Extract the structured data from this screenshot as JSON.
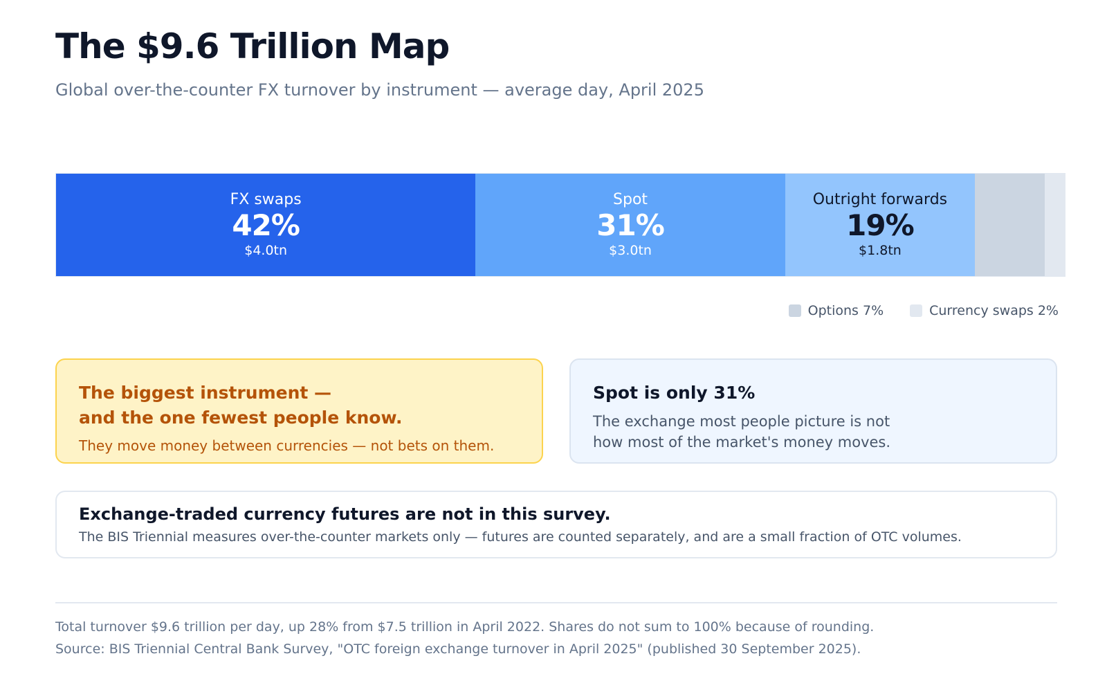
{
  "title": "The $9.6 Trillion Map",
  "subtitle": "Global over-the-counter FX turnover by instrument — average day, April 2025",
  "chart_data": {
    "type": "bar",
    "orientation": "horizontal-stacked-100",
    "title": "The $9.6 Trillion Map",
    "subtitle": "Global over-the-counter FX turnover by instrument — average day, April 2025",
    "unit": "% of total turnover",
    "segments": [
      {
        "name": "FX swaps",
        "share": 42,
        "share_label": "42%",
        "value_label": "$4.0tn",
        "value": 4.0,
        "color": "#2563eb",
        "text_color": "#ffffff"
      },
      {
        "name": "Spot",
        "share": 31,
        "share_label": "31%",
        "value_label": "$3.0tn",
        "value": 3.0,
        "color": "#60a5fa",
        "text_color": "#ffffff"
      },
      {
        "name": "Outright forwards",
        "share": 19,
        "share_label": "19%",
        "value_label": "$1.8tn",
        "value": 1.8,
        "color": "#93c5fd",
        "text_color": "#0f172a"
      },
      {
        "name": "Options",
        "share": 7,
        "color": "#cbd5e1",
        "text_color": "#0f172a"
      },
      {
        "name": "Currency swaps",
        "share": 2,
        "color": "#e2e8f0",
        "text_color": "#0f172a"
      }
    ],
    "legend": [
      {
        "label": "Options 7%",
        "color": "#cbd5e1"
      },
      {
        "label": "Currency swaps 2%",
        "color": "#e2e8f0"
      }
    ],
    "legend_position": "bottom-right"
  },
  "cards": {
    "biggest": {
      "head_line1": "The biggest instrument —",
      "head_line2": "and the one fewest people know.",
      "body": "They move money between currencies — not bets on them."
    },
    "spot": {
      "head": "Spot is only 31%",
      "body_line1": "The exchange most people picture is not",
      "body_line2": "how most of the market's money moves."
    },
    "futures": {
      "head": "Exchange-traded currency futures are not in this survey.",
      "body": "The BIS Triennial measures over-the-counter markets only — futures are counted separately, and are a small fraction of OTC volumes."
    }
  },
  "footer": {
    "note": "Total turnover $9.6 trillion per day, up 28% from $7.5 trillion in April 2022. Shares do not sum to 100% because of rounding.",
    "source": "Source: BIS Triennial Central Bank Survey, \"OTC foreign exchange turnover in April 2025\" (published 30 September 2025)."
  }
}
